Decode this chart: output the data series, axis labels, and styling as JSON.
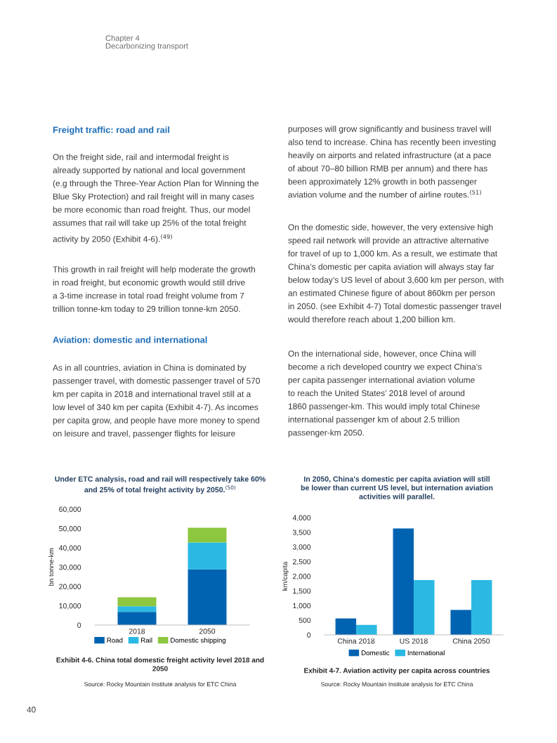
{
  "chart_data": [
    {
      "type": "bar",
      "stacked": true,
      "title": "Under ETC analysis, road and rail will respectively take 60%\nand 25% of total freight activity by 2050.$^{(50)}$",
      "ylabel": "bn tonne-km",
      "categories": [
        "2018",
        "2050"
      ],
      "series": [
        {
          "name": "Road",
          "color": "#0063b1",
          "values": [
            6800,
            28800
          ]
        },
        {
          "name": "Rail",
          "color": "#2bb9e3",
          "values": [
            2900,
            13900
          ]
        },
        {
          "name": "Domestic shipping",
          "color": "#8dc63f",
          "values": [
            4700,
            7700
          ]
        }
      ],
      "ylim": [
        0,
        60000
      ],
      "yticks": [
        {
          "value": 0,
          "label": "0"
        },
        {
          "value": 10000,
          "label": "10,000"
        },
        {
          "value": 20000,
          "label": "20,000"
        },
        {
          "value": 30000,
          "label": "30,000"
        },
        {
          "value": 40000,
          "label": "40,000"
        },
        {
          "value": 50000,
          "label": "50,000"
        },
        {
          "value": 60000,
          "label": "60,000"
        }
      ],
      "grid": false,
      "legend": "bottom",
      "annotations": [
        "Chapter 4\nDecarbonizing transport",
        "Freight traffic: road and rail",
        "On the freight side, rail and intermodal freight is\nalready supported by national and local government\n(e.g through the Three-Year Action Plan for Winning the\nBlue Sky Protection) and rail freight will in many cases\nbe more economic than road freight. Thus, our model\nassumes that rail will take up 25% of the total freight\nactivity by 2050 (Exhibit 4-6).$^{(49)}$",
        "This growth in rail freight will help moderate the growth\nin road freight, but economic growth would still drive\na 3-time increase in total road freight volume from 7\ntrillion tonne-km today to 29 trillion tonne-km 2050.",
        "Aviation: domestic and international",
        "As in all countries, aviation in China is dominated by\npassenger travel, with domestic passenger travel of 570\nkm per capita in 2018 and international travel still at a\nlow level of 340 km per capita (Exhibit 4-7). As incomes\nper capita grow, and people have more money to spend\non leisure and travel, passenger flights for leisure",
        "purposes will grow significantly and business travel will\nalso tend to increase. China has recently been investing\nheavily on airports and related infrastructure (at a pace\nof about 70–80 billion RMB per annum) and there has\nbeen approximately 12% growth in both passenger\naviation volume and the number of airline routes.$^{(51)}$",
        "On the domestic side, however, the very extensive high\nspeed rail network will provide an attractive alternative\nfor travel of up to 1,000 km. As a result, we estimate that\nChina’s domestic per capita aviation will always stay far\nbelow today’s US level of about 3,600 km per person, with\nan estimated Chinese figure of about 860km per person\nin 2050. (see Exhibit 4-7) Total domestic passenger travel\nwould therefore reach about 1,200 billion km.",
        "On the international side, however, once China will\nbecome a rich developed country we expect China’s\nper capita passenger international aviation volume\nto reach the United States’ 2018 level of around\n1860 passenger-km. This would imply total Chinese\ninternational passenger km of about 2.5 trillion\npassenger-km 2050.",
        "40",
        "Exhibit 4-6. China total domestic freight activity level 2018 and\n2050",
        "Source: Rocky Mountain Institute analysis for ETC China"
      ]
    },
    {
      "type": "bar",
      "title": "In 2050, China's domestic per capita aviation will still\nbe lower than current US level, but internation aviation\nactivities will parallel.",
      "ylabel": "km/capita",
      "categories": [
        "China 2018",
        "US 2018",
        "China 2050"
      ],
      "series": [
        {
          "name": "Domestic",
          "color": "#0063b1",
          "values": [
            560,
            3630,
            850
          ]
        },
        {
          "name": "International",
          "color": "#2bb9e3",
          "values": [
            340,
            1870,
            1870
          ]
        }
      ],
      "ylim": [
        0,
        4000
      ],
      "yticks": [
        {
          "value": 0,
          "label": "0"
        },
        {
          "value": 500,
          "label": "500"
        },
        {
          "value": 1000,
          "label": "1,000"
        },
        {
          "value": 1500,
          "label": "1,500"
        },
        {
          "value": 2000,
          "label": "2,000"
        },
        {
          "value": 2500,
          "label": "2,500"
        },
        {
          "value": 3000,
          "label": "3,000"
        },
        {
          "value": 3500,
          "label": "3,500"
        },
        {
          "value": 4000,
          "label": "4,000"
        }
      ],
      "grid": false,
      "legend": "bottom",
      "annotations": [
        "Exhibit 4-7. Aviation activity per capita across countries",
        "Source: Rocky Mountain Institute analysis for ETC China"
      ]
    }
  ]
}
